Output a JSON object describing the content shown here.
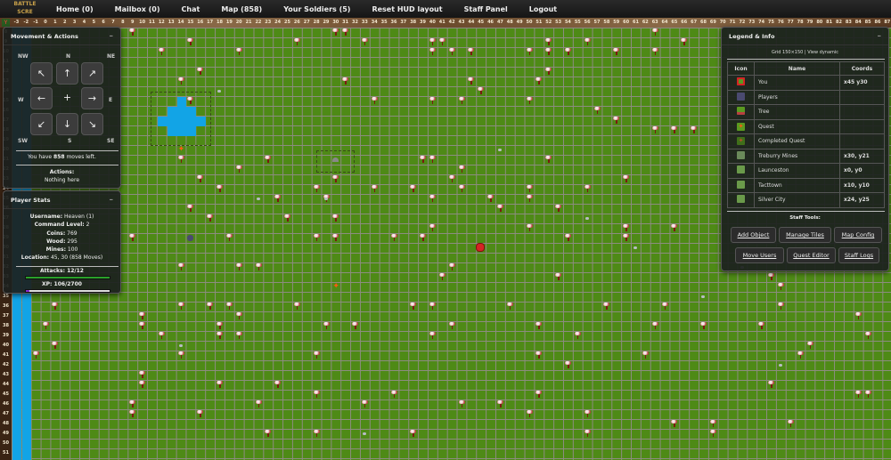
{
  "nav": {
    "logo": "BATTLE SCRE",
    "items": [
      "Home (0)",
      "Mailbox (0)",
      "Chat",
      "Map (858)",
      "Your Soldiers (5)",
      "Reset HUD layout",
      "Staff Panel",
      "Logout"
    ]
  },
  "map": {
    "col_range": [
      -3,
      87
    ],
    "row_range": [
      8,
      51
    ],
    "colors": {
      "grass": "#4e8a16",
      "water": "#12a4e6",
      "grid": "#8c8c80"
    },
    "water_columns": [
      -3,
      -2
    ],
    "lake": [
      [
        14,
        15
      ],
      [
        13,
        16
      ],
      [
        14,
        16
      ],
      [
        15,
        16
      ],
      [
        12,
        17
      ],
      [
        13,
        17
      ],
      [
        14,
        17
      ],
      [
        15,
        17
      ],
      [
        16,
        17
      ],
      [
        13,
        18
      ],
      [
        14,
        18
      ],
      [
        15,
        18
      ]
    ],
    "you": [
      45,
      30
    ],
    "players": [
      [
        15,
        29
      ]
    ],
    "quests": [
      [
        14,
        20
      ],
      [
        30,
        34
      ]
    ],
    "mines": [
      [
        30,
        21
      ]
    ],
    "rocks": [
      [
        18,
        14
      ],
      [
        29,
        25
      ],
      [
        22,
        25
      ],
      [
        47,
        20
      ],
      [
        56,
        27
      ],
      [
        68,
        35
      ],
      [
        76,
        42
      ],
      [
        14,
        40
      ],
      [
        72,
        32
      ],
      [
        33,
        49
      ],
      [
        61,
        30
      ]
    ],
    "trees": [
      [
        9,
        8
      ],
      [
        30,
        8
      ],
      [
        31,
        8
      ],
      [
        15,
        9
      ],
      [
        26,
        9
      ],
      [
        33,
        9
      ],
      [
        41,
        9
      ],
      [
        40,
        9
      ],
      [
        52,
        9
      ],
      [
        56,
        9
      ],
      [
        63,
        8
      ],
      [
        66,
        9
      ],
      [
        12,
        10
      ],
      [
        20,
        10
      ],
      [
        40,
        10
      ],
      [
        42,
        10
      ],
      [
        44,
        10
      ],
      [
        50,
        10
      ],
      [
        52,
        10
      ],
      [
        54,
        10
      ],
      [
        59,
        10
      ],
      [
        63,
        10
      ],
      [
        16,
        12
      ],
      [
        31,
        13
      ],
      [
        44,
        13
      ],
      [
        51,
        13
      ],
      [
        14,
        13
      ],
      [
        52,
        12
      ],
      [
        45,
        14
      ],
      [
        15,
        15
      ],
      [
        34,
        15
      ],
      [
        40,
        15
      ],
      [
        43,
        15
      ],
      [
        50,
        15
      ],
      [
        57,
        16
      ],
      [
        59,
        17
      ],
      [
        63,
        18
      ],
      [
        65,
        18
      ],
      [
        67,
        18
      ],
      [
        14,
        21
      ],
      [
        40,
        21
      ],
      [
        39,
        21
      ],
      [
        43,
        22
      ],
      [
        20,
        22
      ],
      [
        23,
        21
      ],
      [
        52,
        21
      ],
      [
        16,
        23
      ],
      [
        30,
        23
      ],
      [
        42,
        23
      ],
      [
        18,
        24
      ],
      [
        28,
        24
      ],
      [
        34,
        24
      ],
      [
        38,
        24
      ],
      [
        43,
        24
      ],
      [
        50,
        24
      ],
      [
        56,
        24
      ],
      [
        60,
        23
      ],
      [
        24,
        25
      ],
      [
        29,
        25
      ],
      [
        40,
        25
      ],
      [
        46,
        25
      ],
      [
        50,
        25
      ],
      [
        15,
        26
      ],
      [
        17,
        27
      ],
      [
        25,
        27
      ],
      [
        30,
        27
      ],
      [
        47,
        26
      ],
      [
        53,
        26
      ],
      [
        40,
        28
      ],
      [
        50,
        28
      ],
      [
        60,
        28
      ],
      [
        65,
        28
      ],
      [
        9,
        29
      ],
      [
        19,
        29
      ],
      [
        28,
        29
      ],
      [
        30,
        29
      ],
      [
        36,
        29
      ],
      [
        39,
        29
      ],
      [
        54,
        29
      ],
      [
        60,
        29
      ],
      [
        14,
        32
      ],
      [
        20,
        32
      ],
      [
        22,
        32
      ],
      [
        42,
        32
      ],
      [
        53,
        33
      ],
      [
        41,
        33
      ],
      [
        76,
        34
      ],
      [
        75,
        33
      ],
      [
        1,
        36
      ],
      [
        10,
        37
      ],
      [
        17,
        36
      ],
      [
        19,
        36
      ],
      [
        14,
        36
      ],
      [
        20,
        37
      ],
      [
        26,
        36
      ],
      [
        38,
        36
      ],
      [
        40,
        36
      ],
      [
        48,
        36
      ],
      [
        58,
        36
      ],
      [
        64,
        36
      ],
      [
        76,
        36
      ],
      [
        0,
        38
      ],
      [
        10,
        38
      ],
      [
        18,
        38
      ],
      [
        29,
        38
      ],
      [
        32,
        38
      ],
      [
        42,
        38
      ],
      [
        51,
        38
      ],
      [
        63,
        38
      ],
      [
        68,
        38
      ],
      [
        74,
        38
      ],
      [
        84,
        37
      ],
      [
        1,
        40
      ],
      [
        12,
        39
      ],
      [
        18,
        39
      ],
      [
        20,
        39
      ],
      [
        40,
        39
      ],
      [
        55,
        39
      ],
      [
        79,
        40
      ],
      [
        -1,
        41
      ],
      [
        14,
        41
      ],
      [
        28,
        41
      ],
      [
        51,
        41
      ],
      [
        54,
        42
      ],
      [
        62,
        41
      ],
      [
        85,
        39
      ],
      [
        78,
        41
      ],
      [
        10,
        43
      ],
      [
        10,
        44
      ],
      [
        18,
        44
      ],
      [
        24,
        44
      ],
      [
        28,
        45
      ],
      [
        36,
        45
      ],
      [
        51,
        45
      ],
      [
        75,
        44
      ],
      [
        84,
        45
      ],
      [
        85,
        45
      ],
      [
        9,
        46
      ],
      [
        9,
        47
      ],
      [
        16,
        47
      ],
      [
        22,
        46
      ],
      [
        33,
        46
      ],
      [
        43,
        46
      ],
      [
        47,
        46
      ],
      [
        56,
        47
      ],
      [
        50,
        47
      ],
      [
        65,
        48
      ],
      [
        69,
        48
      ],
      [
        23,
        49
      ],
      [
        28,
        49
      ],
      [
        38,
        49
      ],
      [
        77,
        48
      ],
      [
        56,
        49
      ],
      [
        69,
        49
      ]
    ]
  },
  "movement": {
    "title": "Movement & Actions",
    "dirs": {
      "nw": "NW",
      "n": "N",
      "ne": "NE",
      "w": "W",
      "e": "E",
      "sw": "SW",
      "s": "S",
      "se": "SE"
    },
    "arrows": {
      "nw": "↖",
      "n": "↑",
      "ne": "↗",
      "w": "←",
      "center": "+",
      "e": "→",
      "sw": "↙",
      "s": "↓",
      "se": "↘"
    },
    "moves_prefix": "You have ",
    "moves": "858",
    "moves_suffix": " moves left.",
    "actions_label": "Actions:",
    "actions_value": "Nothing here"
  },
  "stats": {
    "title": "Player Stats",
    "lines": [
      [
        "Username:",
        " Heaven (1)"
      ],
      [
        "Command Level:",
        " 2"
      ],
      [
        "Coins:",
        " 769"
      ],
      [
        "Wood:",
        " 295"
      ],
      [
        "Mines:",
        " 100"
      ],
      [
        "Location:",
        " 45, 30 (858 Moves)"
      ]
    ],
    "attacks_label": "Attacks: 12/12",
    "attacks": [
      12,
      12
    ],
    "xp_label": "XP: 106/2700",
    "xp": [
      106,
      2700
    ],
    "colors": {
      "attacks": "#2aa02a",
      "xp": "#8a2ad0"
    }
  },
  "legend": {
    "title": "Legend & Info",
    "subtitle": "Grid 150×150 | View dynamic",
    "headers": [
      "Icon",
      "Name",
      "Coords"
    ],
    "rows": [
      {
        "icon": "you-icon",
        "name": "You",
        "coords": "x45 y30"
      },
      {
        "icon": "players-icon",
        "name": "Players",
        "coords": ""
      },
      {
        "icon": "tree-icon",
        "name": "Tree",
        "coords": ""
      },
      {
        "icon": "quest-icon",
        "name": "Quest",
        "coords": ""
      },
      {
        "icon": "completed-quest-icon",
        "name": "Completed Quest",
        "coords": ""
      },
      {
        "icon": "mine-icon",
        "name": "Treburry Mines",
        "coords": "x30, y21"
      },
      {
        "icon": "town-icon",
        "name": "Launceston",
        "coords": "x0, y0"
      },
      {
        "icon": "town-icon",
        "name": "Tacttown",
        "coords": "x10, y10"
      },
      {
        "icon": "town-icon",
        "name": "Silver City",
        "coords": "x24, y25"
      }
    ],
    "staff_label": "Staff Tools:",
    "buttons": [
      "Add Object",
      "Manage Tiles",
      "Map Config",
      "Move Users",
      "Quest Editor",
      "Staff Logs"
    ]
  }
}
